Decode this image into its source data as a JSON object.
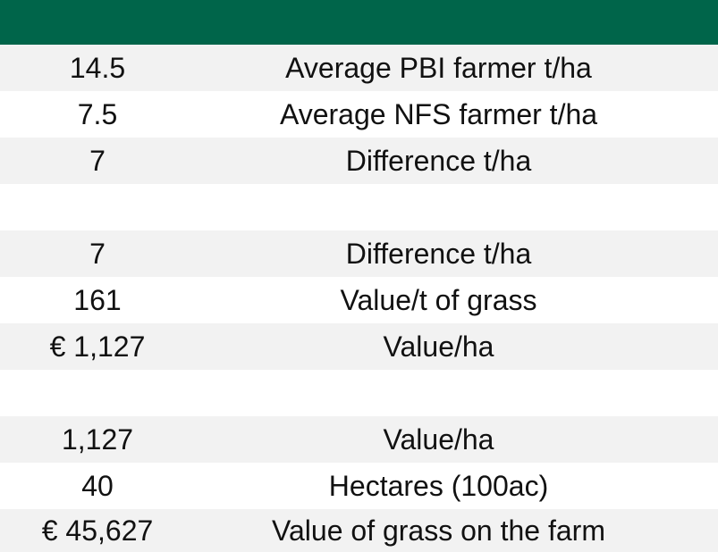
{
  "header": {
    "color": "#00654a"
  },
  "rows": [
    {
      "value": "14.5",
      "label": "Average PBI farmer t/ha",
      "shaded": true
    },
    {
      "value": "7.5",
      "label": "Average NFS farmer t/ha",
      "shaded": false
    },
    {
      "value": "7",
      "label": "Difference t/ha",
      "shaded": true
    },
    {
      "value": "",
      "label": "",
      "shaded": false
    },
    {
      "value": "7",
      "label": "Difference t/ha",
      "shaded": true
    },
    {
      "value": "161",
      "label": "Value/t of grass",
      "shaded": false
    },
    {
      "value": "€ 1,127",
      "label": "Value/ha",
      "shaded": true
    },
    {
      "value": "",
      "label": "",
      "shaded": false
    },
    {
      "value": "1,127",
      "label": "Value/ha",
      "shaded": true
    },
    {
      "value": "40",
      "label": "Hectares (100ac)",
      "shaded": false
    },
    {
      "value": "€ 45,627",
      "label": "Value of grass on the farm",
      "shaded": true
    }
  ]
}
